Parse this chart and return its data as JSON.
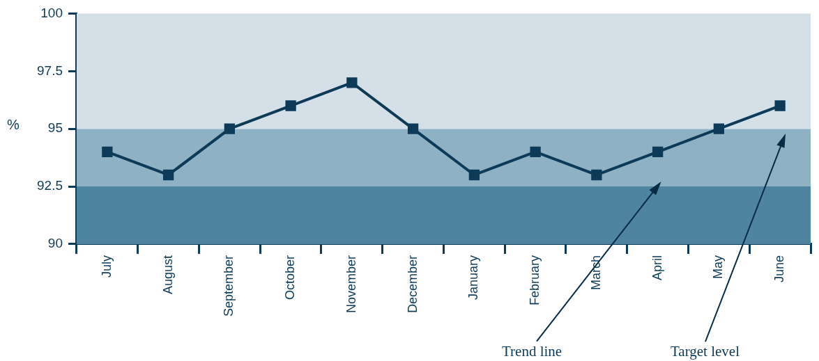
{
  "chart_data": {
    "type": "line",
    "ylabel": "%",
    "categories": [
      "July",
      "August",
      "September",
      "October",
      "November",
      "December",
      "January",
      "February",
      "March",
      "April",
      "May",
      "June"
    ],
    "series": [
      {
        "color": "#0d3a56",
        "values": [
          94,
          93,
          95,
          96,
          97,
          95,
          93,
          94,
          93,
          94,
          95,
          96
        ]
      }
    ],
    "ylim": [
      90,
      100
    ],
    "yticks": [
      90,
      92.5,
      95,
      97.5,
      100
    ],
    "bands": [
      {
        "axis": "y",
        "from": 90,
        "to": 92.5,
        "color": "#4e84a0"
      },
      {
        "axis": "y",
        "from": 92.5,
        "to": 95,
        "color": "#8fb1c4"
      },
      {
        "axis": "y",
        "from": 95,
        "to": 100,
        "color": "#d4e0e8"
      }
    ],
    "annotations": [
      "Trend line",
      "Target level"
    ],
    "marker": "square",
    "line_style": "solid",
    "legend": false,
    "grid": false
  }
}
